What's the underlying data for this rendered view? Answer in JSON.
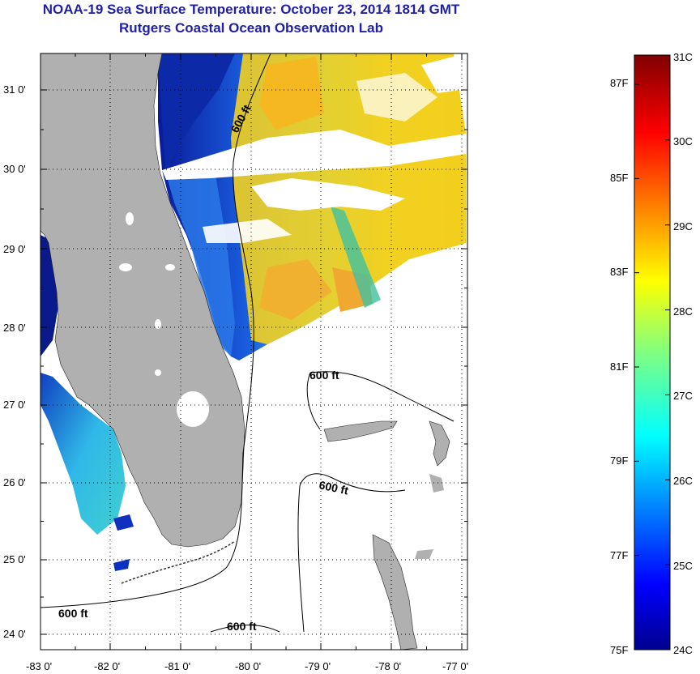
{
  "header": {
    "title": "NOAA-19 Sea Surface Temperature:  October 23, 2014 1814 GMT",
    "subtitle": "Rutgers Coastal Ocean Observation Lab"
  },
  "map": {
    "lat_labels": [
      "31 0'",
      "30 0'",
      "29 0'",
      "28 0'",
      "27 0'",
      "26 0'",
      "25 0'",
      "24 0'"
    ],
    "lon_labels": [
      "-83 0'",
      "-82 0'",
      "-81 0'",
      "-80 0'",
      "-79 0'",
      "-78 0'",
      "-77 0'"
    ],
    "contour_label": "600 ft",
    "colors": {
      "land": "#b0b0b0",
      "cold": "#0a1a9a",
      "warm": "#f5c000"
    }
  },
  "colorbar": {
    "celsius": [
      "31C",
      "30C",
      "29C",
      "28C",
      "27C",
      "26C",
      "25C",
      "24C"
    ],
    "fahrenheit": [
      "87F",
      "85F",
      "83F",
      "81F",
      "79F",
      "77F",
      "75F"
    ]
  }
}
